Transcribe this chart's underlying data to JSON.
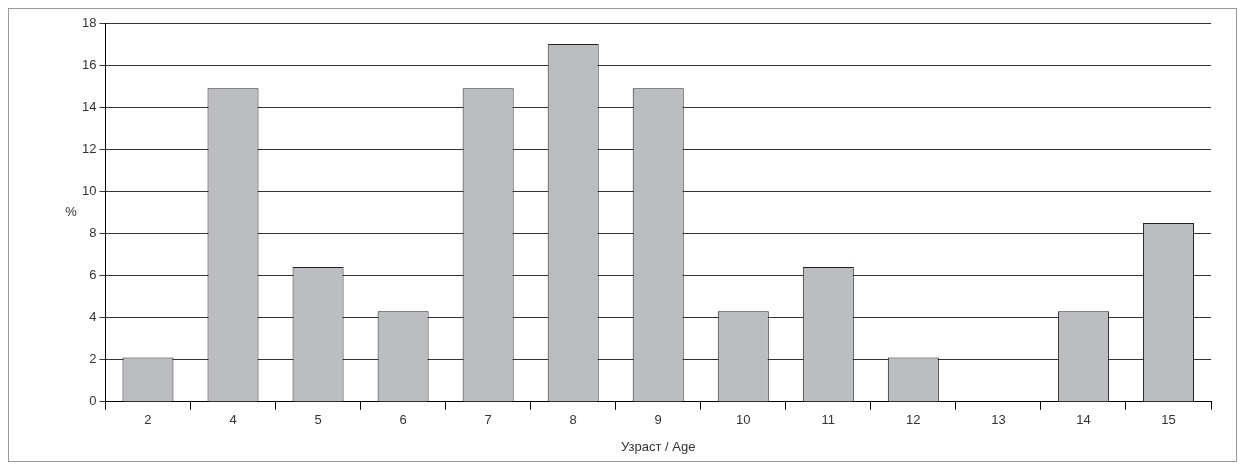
{
  "chart_data": {
    "type": "bar",
    "xlabel": "Узраст / Age",
    "ylabel": "%",
    "categories": [
      "2",
      "4",
      "5",
      "6",
      "7",
      "8",
      "9",
      "10",
      "11",
      "12",
      "13",
      "14",
      "15"
    ],
    "values": [
      2.1,
      14.9,
      6.4,
      4.3,
      14.9,
      17,
      14.9,
      4.3,
      6.4,
      2.1,
      0,
      4.3,
      8.5
    ],
    "color": "#bcbdc0",
    "ylim": [
      0,
      18
    ],
    "yticks": [
      0,
      2,
      4,
      6,
      8,
      10,
      12,
      14,
      16,
      18
    ],
    "grid": "y",
    "legend": false
  }
}
